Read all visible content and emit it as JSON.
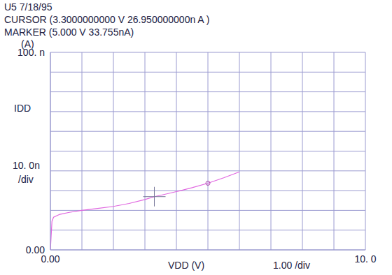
{
  "chart_data": {
    "type": "line",
    "title": "U5 7/18/95",
    "header": [
      "CURSOR (3.3000000000 V 26.950000000n A )",
      "MARKER (5.000 V 33.755nA)"
    ],
    "y_unit_label": "(A)",
    "x_label": "VDD (V)",
    "y_label": "IDD",
    "x_scale_label": "1.00 /div",
    "y_scale_label": [
      "10. 0n",
      "/div"
    ],
    "x_step": 1,
    "y_step": 10,
    "x": [
      0,
      0.02,
      0.05,
      0.1,
      0.3,
      0.6,
      1,
      1.5,
      2,
      2.5,
      3,
      3.3,
      3.6,
      4,
      4.5,
      5,
      5.5,
      6
    ],
    "values": [
      0,
      6,
      14.5,
      16.5,
      18,
      19,
      20,
      21,
      22,
      23.5,
      25.5,
      26.95,
      28,
      29.5,
      31.5,
      33.755,
      36.5,
      39.5
    ],
    "color": "#e066e0",
    "xlim": [
      0,
      10
    ],
    "ylim": [
      0,
      100
    ],
    "xticks": [
      {
        "value": 0,
        "label": "0.00"
      },
      {
        "value": 10,
        "label": "10. 0"
      }
    ],
    "yticks": [
      {
        "value": 0,
        "label": "0.00"
      },
      {
        "value": 100,
        "label": "100. n"
      }
    ],
    "grid": true,
    "cursor": {
      "x": 3.3,
      "y": 26.95
    },
    "marker_point": {
      "x": 5,
      "y": 33.755
    }
  }
}
